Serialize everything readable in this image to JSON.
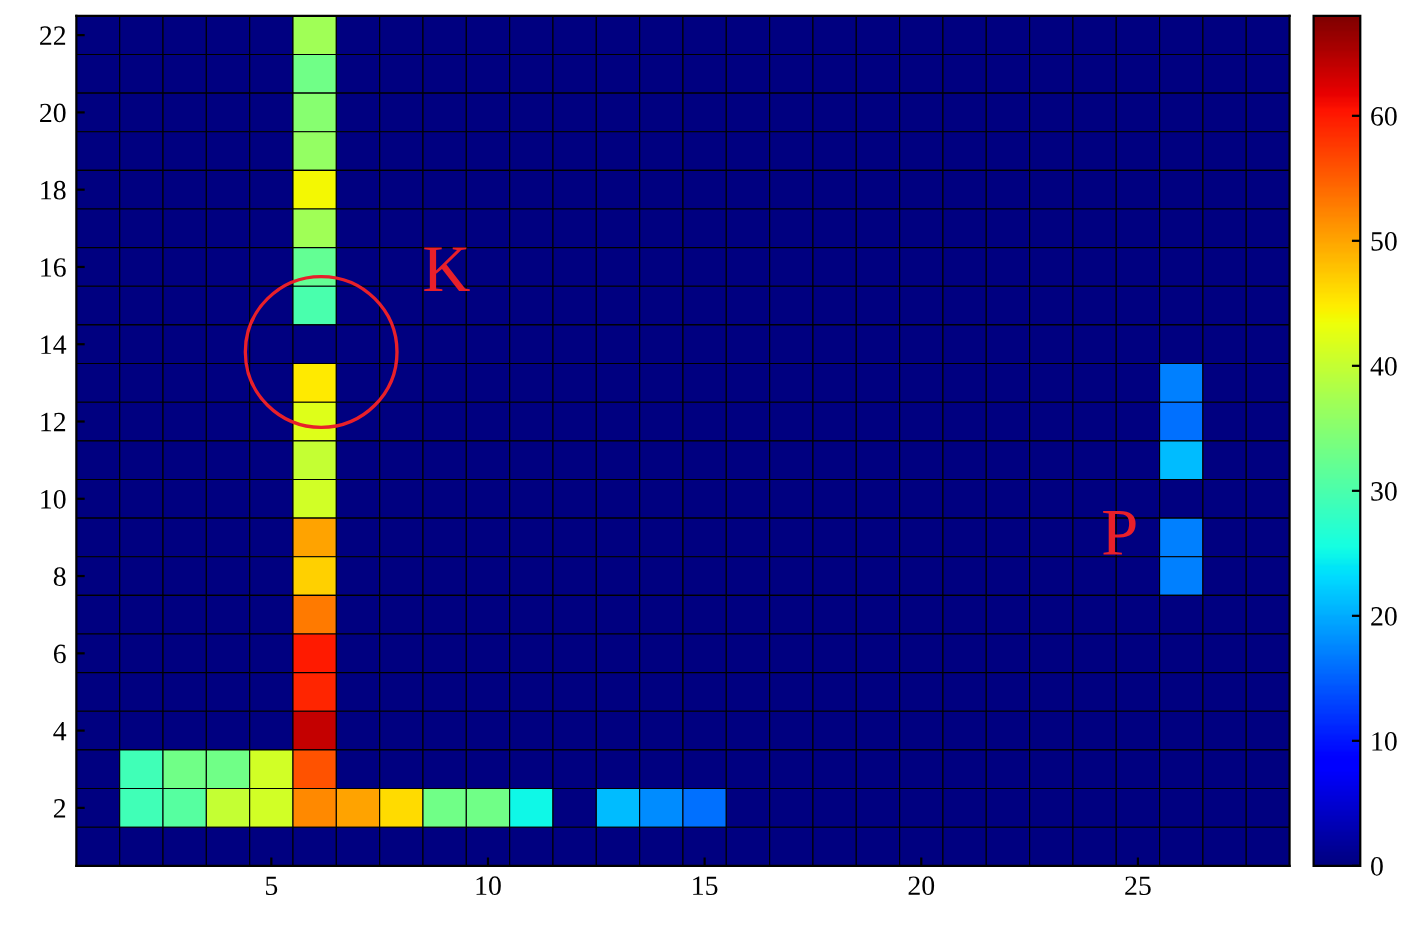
{
  "chart_data": {
    "type": "heatmap",
    "categories": [
      null,
      null,
      null,
      null,
      "5",
      null,
      null,
      null,
      null,
      "10",
      null,
      null,
      null,
      null,
      "15",
      null,
      null,
      null,
      null,
      "20",
      null,
      null,
      null,
      null,
      "25",
      null,
      null,
      null
    ],
    "y_categories": [
      "22",
      null,
      "20",
      null,
      "18",
      null,
      "16",
      null,
      "14",
      null,
      "12",
      null,
      "10",
      null,
      "8",
      null,
      "6",
      null,
      "4",
      null,
      "2",
      null
    ],
    "cells": [
      [
        0,
        0,
        0,
        0,
        0,
        37,
        0,
        0,
        0,
        0,
        0,
        0,
        0,
        0,
        0,
        0,
        0,
        0,
        0,
        0,
        0,
        0,
        0,
        0,
        0,
        0,
        0,
        0
      ],
      [
        0,
        0,
        0,
        0,
        0,
        33,
        0,
        0,
        0,
        0,
        0,
        0,
        0,
        0,
        0,
        0,
        0,
        0,
        0,
        0,
        0,
        0,
        0,
        0,
        0,
        0,
        0,
        0
      ],
      [
        0,
        0,
        0,
        0,
        0,
        35,
        0,
        0,
        0,
        0,
        0,
        0,
        0,
        0,
        0,
        0,
        0,
        0,
        0,
        0,
        0,
        0,
        0,
        0,
        0,
        0,
        0,
        0
      ],
      [
        0,
        0,
        0,
        0,
        0,
        36,
        0,
        0,
        0,
        0,
        0,
        0,
        0,
        0,
        0,
        0,
        0,
        0,
        0,
        0,
        0,
        0,
        0,
        0,
        0,
        0,
        0,
        0
      ],
      [
        0,
        0,
        0,
        0,
        0,
        44,
        0,
        0,
        0,
        0,
        0,
        0,
        0,
        0,
        0,
        0,
        0,
        0,
        0,
        0,
        0,
        0,
        0,
        0,
        0,
        0,
        0,
        0
      ],
      [
        0,
        0,
        0,
        0,
        0,
        37,
        0,
        0,
        0,
        0,
        0,
        0,
        0,
        0,
        0,
        0,
        0,
        0,
        0,
        0,
        0,
        0,
        0,
        0,
        0,
        0,
        0,
        0
      ],
      [
        0,
        0,
        0,
        0,
        0,
        32,
        0,
        0,
        0,
        0,
        0,
        0,
        0,
        0,
        0,
        0,
        0,
        0,
        0,
        0,
        0,
        0,
        0,
        0,
        0,
        0,
        0,
        0
      ],
      [
        0,
        0,
        0,
        0,
        0,
        30,
        0,
        0,
        0,
        0,
        0,
        0,
        0,
        0,
        0,
        0,
        0,
        0,
        0,
        0,
        0,
        0,
        0,
        0,
        0,
        0,
        0,
        0
      ],
      [
        0,
        0,
        0,
        0,
        0,
        0,
        0,
        0,
        0,
        0,
        0,
        0,
        0,
        0,
        0,
        0,
        0,
        0,
        0,
        0,
        0,
        0,
        0,
        0,
        0,
        0,
        0,
        0
      ],
      [
        0,
        0,
        0,
        0,
        0,
        45,
        0,
        0,
        0,
        0,
        0,
        0,
        0,
        0,
        0,
        0,
        0,
        0,
        0,
        0,
        0,
        0,
        0,
        0,
        0,
        17,
        0,
        0
      ],
      [
        0,
        0,
        0,
        0,
        0,
        42,
        0,
        0,
        0,
        0,
        0,
        0,
        0,
        0,
        0,
        0,
        0,
        0,
        0,
        0,
        0,
        0,
        0,
        0,
        0,
        16,
        0,
        0
      ],
      [
        0,
        0,
        0,
        0,
        0,
        40,
        0,
        0,
        0,
        0,
        0,
        0,
        0,
        0,
        0,
        0,
        0,
        0,
        0,
        0,
        0,
        0,
        0,
        0,
        0,
        21,
        0,
        0
      ],
      [
        0,
        0,
        0,
        0,
        0,
        41,
        0,
        0,
        0,
        0,
        0,
        0,
        0,
        0,
        0,
        0,
        0,
        0,
        0,
        0,
        0,
        0,
        0,
        0,
        0,
        0,
        0,
        0
      ],
      [
        0,
        0,
        0,
        0,
        0,
        50,
        0,
        0,
        0,
        0,
        0,
        0,
        0,
        0,
        0,
        0,
        0,
        0,
        0,
        0,
        0,
        0,
        0,
        0,
        0,
        17,
        0,
        0
      ],
      [
        0,
        0,
        0,
        0,
        0,
        47,
        0,
        0,
        0,
        0,
        0,
        0,
        0,
        0,
        0,
        0,
        0,
        0,
        0,
        0,
        0,
        0,
        0,
        0,
        0,
        17,
        0,
        0
      ],
      [
        0,
        0,
        0,
        0,
        0,
        53,
        0,
        0,
        0,
        0,
        0,
        0,
        0,
        0,
        0,
        0,
        0,
        0,
        0,
        0,
        0,
        0,
        0,
        0,
        0,
        0,
        0,
        0
      ],
      [
        0,
        0,
        0,
        0,
        0,
        60,
        0,
        0,
        0,
        0,
        0,
        0,
        0,
        0,
        0,
        0,
        0,
        0,
        0,
        0,
        0,
        0,
        0,
        0,
        0,
        0,
        0,
        0
      ],
      [
        0,
        0,
        0,
        0,
        0,
        59,
        0,
        0,
        0,
        0,
        0,
        0,
        0,
        0,
        0,
        0,
        0,
        0,
        0,
        0,
        0,
        0,
        0,
        0,
        0,
        0,
        0,
        0
      ],
      [
        0,
        0,
        0,
        0,
        0,
        64,
        0,
        0,
        0,
        0,
        0,
        0,
        0,
        0,
        0,
        0,
        0,
        0,
        0,
        0,
        0,
        0,
        0,
        0,
        0,
        0,
        0,
        0
      ],
      [
        0,
        29,
        33,
        33,
        41,
        56,
        0,
        0,
        0,
        0,
        0,
        0,
        0,
        0,
        0,
        0,
        0,
        0,
        0,
        0,
        0,
        0,
        0,
        0,
        0,
        0,
        0,
        0
      ],
      [
        0,
        29,
        31,
        40,
        41,
        52,
        50,
        46,
        33,
        33,
        25,
        0,
        21,
        18,
        16,
        0,
        0,
        0,
        0,
        0,
        0,
        0,
        0,
        0,
        0,
        0,
        0,
        0
      ],
      [
        0,
        0,
        0,
        0,
        0,
        0,
        0,
        0,
        0,
        0,
        0,
        0,
        0,
        0,
        0,
        0,
        0,
        0,
        0,
        0,
        0,
        0,
        0,
        0,
        0,
        0,
        0,
        0
      ]
    ],
    "clim": [
      0,
      68
    ],
    "cticks": [
      0,
      10,
      20,
      30,
      40,
      50,
      60
    ],
    "annotations": [
      "K",
      "P"
    ]
  }
}
